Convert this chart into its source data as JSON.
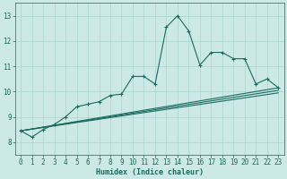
{
  "bg_color": "#cce9e5",
  "grid_color": "#aad4cf",
  "line_color": "#1a6b60",
  "xlabel": "Humidex (Indice chaleur)",
  "ylim": [
    7.5,
    13.5
  ],
  "xlim": [
    -0.5,
    23.5
  ],
  "yticks": [
    8,
    9,
    10,
    11,
    12,
    13
  ],
  "xticks": [
    0,
    1,
    2,
    3,
    4,
    5,
    6,
    7,
    8,
    9,
    10,
    11,
    12,
    13,
    14,
    15,
    16,
    17,
    18,
    19,
    20,
    21,
    22,
    23
  ],
  "line1_x": [
    0,
    1,
    2,
    3,
    4,
    5,
    6,
    7,
    8,
    9,
    10,
    11,
    12,
    13,
    14,
    15,
    16,
    17,
    18,
    19,
    20,
    21,
    22,
    23
  ],
  "line1_y": [
    8.45,
    8.2,
    8.5,
    8.7,
    9.0,
    9.4,
    9.5,
    9.6,
    9.85,
    9.9,
    10.6,
    10.6,
    10.3,
    12.55,
    13.0,
    12.4,
    11.05,
    11.55,
    11.55,
    11.3,
    11.3,
    10.3,
    10.5,
    10.15
  ],
  "line2_x": [
    0,
    23
  ],
  "line2_y": [
    8.45,
    10.15
  ],
  "line3_x": [
    0,
    23
  ],
  "line3_y": [
    8.45,
    10.05
  ],
  "line4_x": [
    0,
    23
  ],
  "line4_y": [
    8.45,
    9.95
  ]
}
